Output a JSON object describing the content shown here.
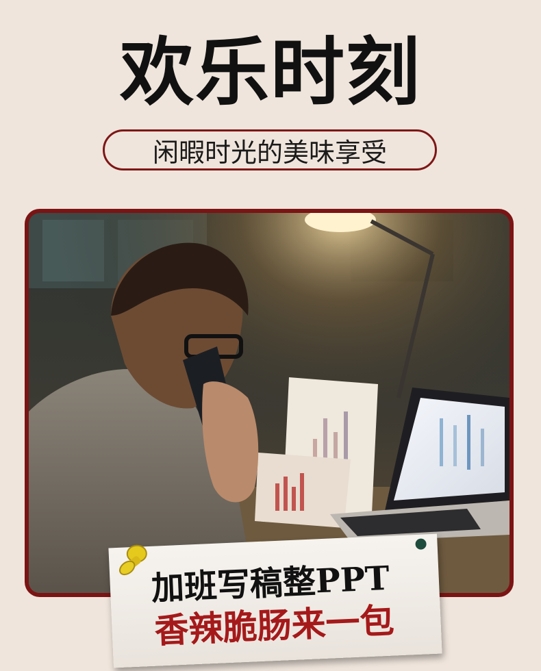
{
  "title": "欢乐时刻",
  "subtitle": "闲暇时光的美味享受",
  "note": {
    "line1": "加班写稿整PPT",
    "line2": "香辣脆肠来一包"
  },
  "colors": {
    "background": "#efe5dc",
    "accent": "#7b1414",
    "note_highlight": "#a5191a"
  },
  "icons": {
    "pin": "pushpin-icon",
    "dot": "dot-icon"
  }
}
